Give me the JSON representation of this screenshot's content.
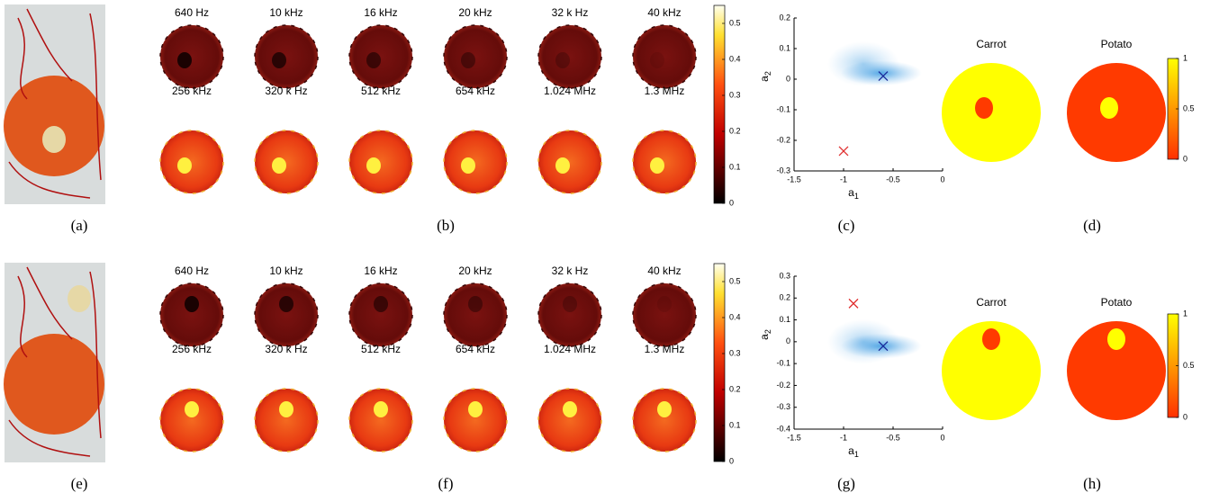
{
  "rows": [
    {
      "photo_label": "(a)",
      "freq_label": "(b)",
      "frequencies": [
        [
          "640 Hz",
          "10 kHz",
          "16 kHz",
          "20 kHz",
          "32 k Hz",
          "40 kHz"
        ],
        [
          "256 kHz",
          "320 k Hz",
          "512 kHz",
          "654 kHz",
          "1.024 MHz",
          "1.3 MHz"
        ]
      ],
      "colorbar": {
        "lim": [
          0,
          0.55
        ],
        "ticks": [
          0,
          0.1,
          0.2,
          0.3,
          0.4,
          0.5
        ]
      },
      "scatter_label": "(c)",
      "classes_label": "(d)",
      "classes": [
        "Carrot",
        "Potato"
      ],
      "class_colorbar": {
        "lim": [
          0,
          1
        ],
        "ticks": [
          0,
          0.5,
          1
        ]
      }
    },
    {
      "photo_label": "(e)",
      "freq_label": "(f)",
      "frequencies": [
        [
          "640 Hz",
          "10 kHz",
          "16 kHz",
          "20 kHz",
          "32 k Hz",
          "40 kHz"
        ],
        [
          "256 kHz",
          "320 k Hz",
          "512 kHz",
          "654 kHz",
          "1.024 MHz",
          "1.3 MHz"
        ]
      ],
      "colorbar": {
        "lim": [
          0,
          0.55
        ],
        "ticks": [
          0,
          0.1,
          0.2,
          0.3,
          0.4,
          0.5
        ]
      },
      "scatter_label": "(g)",
      "classes_label": "(h)",
      "classes": [
        "Carrot",
        "Potato"
      ],
      "class_colorbar": {
        "lim": [
          0,
          1
        ],
        "ticks": [
          0,
          0.5,
          1
        ]
      }
    }
  ],
  "chart_data": [
    {
      "type": "scatter",
      "xlabel": [
        "a",
        "1"
      ],
      "ylabel": [
        "a",
        "2"
      ],
      "xlim": [
        -1.5,
        0
      ],
      "xticks": [
        -1.5,
        -1,
        -0.5,
        0
      ],
      "ylim": [
        -0.3,
        0.2
      ],
      "yticks": [
        -0.3,
        -0.2,
        -0.1,
        0,
        0.1,
        0.2
      ],
      "series": [
        {
          "color": "#e03030",
          "x": [
            -1.0
          ],
          "values": [
            -0.235
          ]
        },
        {
          "color": "#1a2a9a",
          "x": [
            -0.6
          ],
          "values": [
            0.01
          ]
        }
      ]
    },
    {
      "type": "scatter",
      "xlabel": [
        "a",
        "1"
      ],
      "ylabel": [
        "a",
        "2"
      ],
      "xlim": [
        -1.5,
        0
      ],
      "xticks": [
        -1.5,
        -1,
        -0.5,
        0
      ],
      "ylim": [
        -0.4,
        0.3
      ],
      "yticks": [
        -0.4,
        -0.3,
        -0.2,
        -0.1,
        0,
        0.1,
        0.2,
        0.3
      ],
      "series": [
        {
          "color": "#e03030",
          "x": [
            -0.9
          ],
          "values": [
            0.175
          ]
        },
        {
          "color": "#1a2a9a",
          "x": [
            -0.6
          ],
          "values": [
            -0.02
          ]
        }
      ]
    }
  ]
}
